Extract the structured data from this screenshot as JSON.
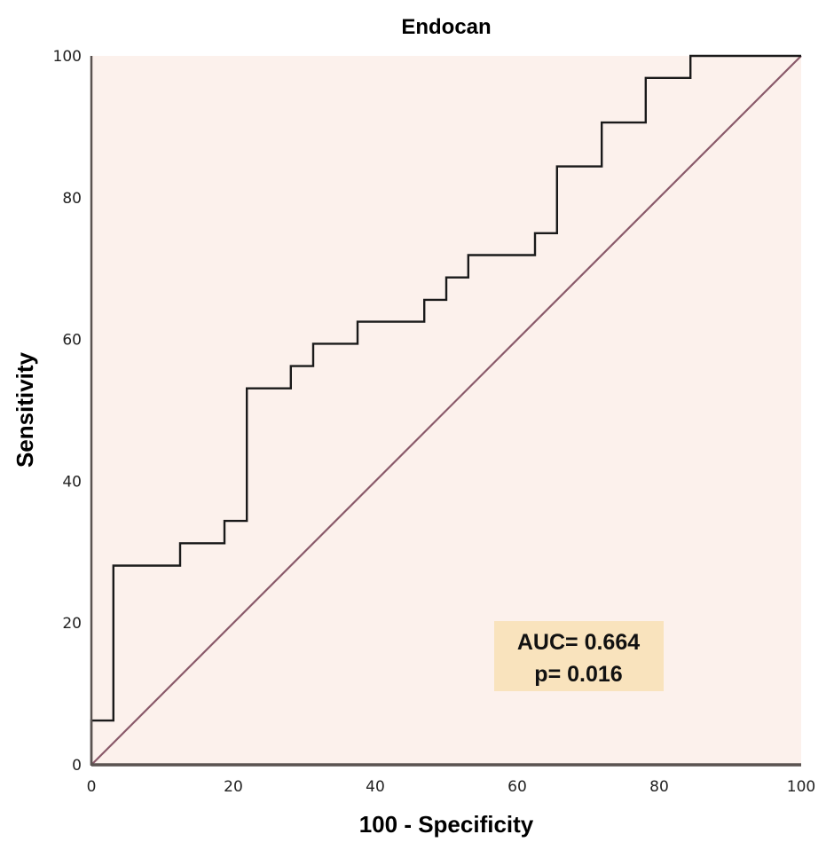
{
  "chart_data": {
    "type": "line",
    "title": "Endocan",
    "xlabel": "100 - Specificity",
    "ylabel": "Sensitivity",
    "xlim": [
      0,
      100
    ],
    "ylim": [
      0,
      100
    ],
    "x_ticks": [
      0,
      20,
      40,
      60,
      80,
      100
    ],
    "y_ticks": [
      0,
      20,
      40,
      60,
      80,
      100
    ],
    "grid": false,
    "colors": {
      "plot_background": "#fcf1ec",
      "roc_line": "#1a1a1a",
      "reference_line": "#8a5a6a",
      "axis_line": "#5a5350",
      "annotation_background": "#f9e3bd"
    },
    "series": [
      {
        "name": "ROC curve",
        "x": [
          0,
          0,
          3.1,
          3.1,
          12.5,
          12.5,
          18.75,
          18.75,
          21.9,
          21.9,
          28.1,
          28.1,
          31.25,
          31.25,
          37.5,
          37.5,
          46.9,
          46.9,
          50,
          50,
          53.1,
          53.1,
          62.5,
          62.5,
          65.6,
          65.6,
          71.9,
          71.9,
          78.1,
          78.1,
          84.4,
          84.4,
          100
        ],
        "y": [
          0,
          6.25,
          6.25,
          28.1,
          28.1,
          31.25,
          31.25,
          34.4,
          34.4,
          53.1,
          53.1,
          56.25,
          56.25,
          59.4,
          59.4,
          62.5,
          62.5,
          65.6,
          65.6,
          68.75,
          68.75,
          71.9,
          71.9,
          75,
          75,
          84.4,
          84.4,
          90.6,
          90.6,
          96.9,
          96.9,
          100,
          100
        ]
      },
      {
        "name": "Reference line",
        "x": [
          0,
          100
        ],
        "y": [
          0,
          100
        ]
      }
    ],
    "annotations": [
      {
        "text": "AUC= 0.664",
        "position": "lower-right"
      },
      {
        "text": "p= 0.016",
        "position": "lower-right"
      }
    ]
  }
}
